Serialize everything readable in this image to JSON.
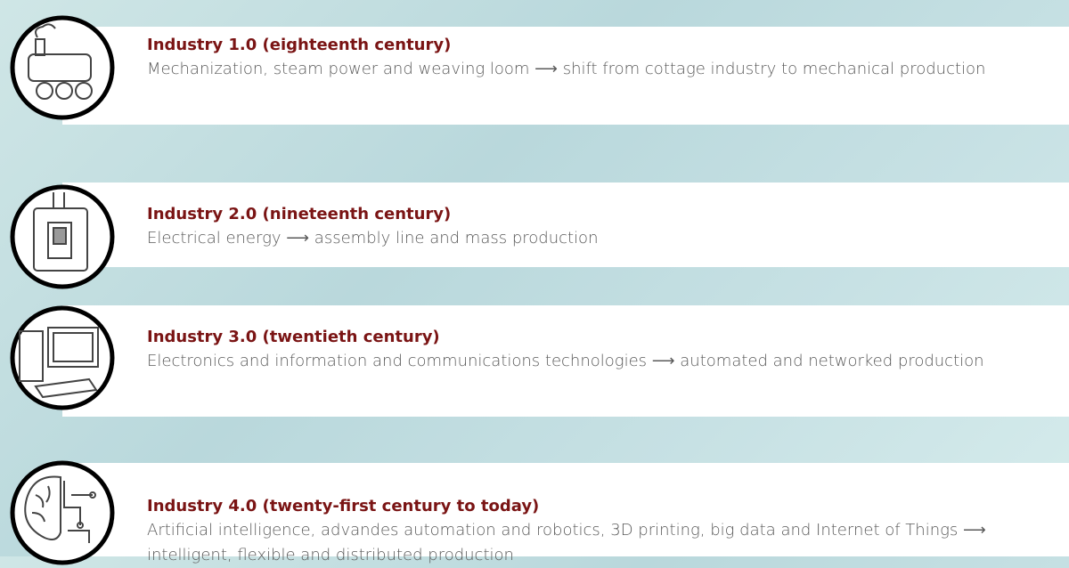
{
  "items": [
    {
      "title": "Industry 1.0 (eighteenth century)",
      "description": "Mechanization, steam power and weaving loom ⟶ shift from cottage industry to mechanical production"
    },
    {
      "title": "Industry 2.0 (nineteenth century)",
      "description": "Electrical energy ⟶ assembly line and mass production"
    },
    {
      "title": "Industry 3.0 (twentieth century)",
      "description": "Electronics and information and communications technologies ⟶ automated and networked production"
    },
    {
      "title": "Industry 4.0 (twenty-first century to today)",
      "description": "Artificial intelligence, advandes automation and robotics, 3D printing, big data and Internet of Things ⟶ intelligent, flexible and distributed production"
    }
  ]
}
